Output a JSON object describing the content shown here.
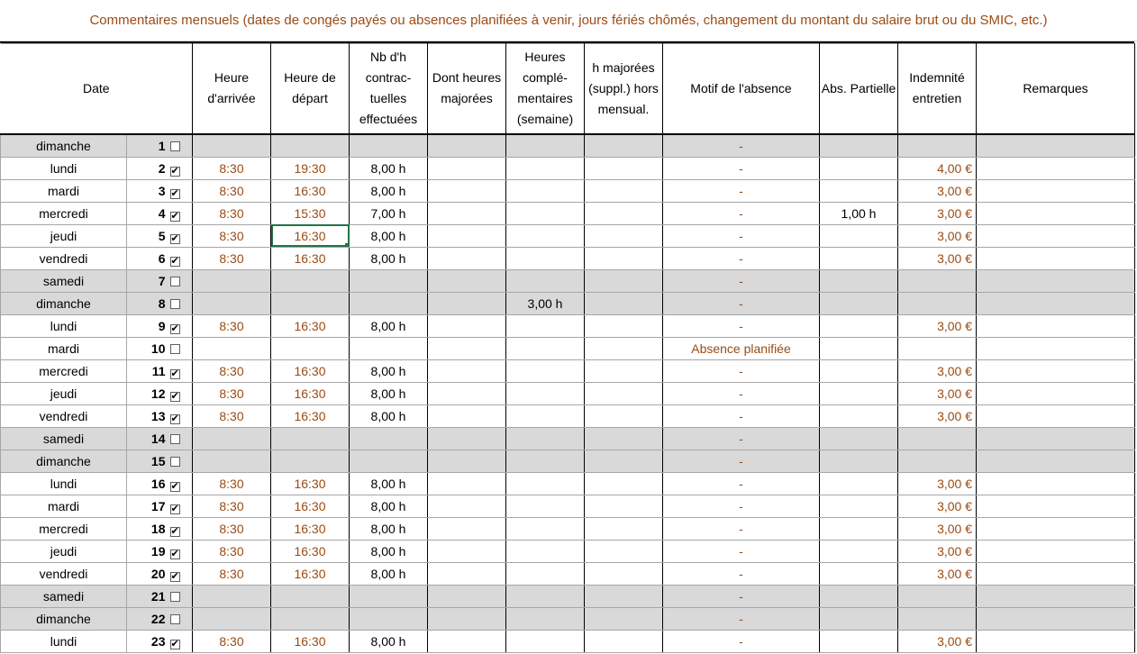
{
  "comment": "Commentaires mensuels (dates de congés payés ou absences planifiées à venir, jours fériés chômés, changement du montant du salaire brut ou du SMIC, etc.)",
  "headers": {
    "date": "Date",
    "arrivee": "Heure d'arrivée",
    "depart": "Heure de départ",
    "contractuelles": "Nb d'h contrac-tuelles effectuées",
    "majorees": "Dont heures majorées",
    "complementaires": "Heures complé-mentaires (semaine)",
    "hors": "h majorées (suppl.) hors mensual.",
    "motif": "Motif de l'absence",
    "partielle": "Abs. Partielle",
    "indemnite": "Indemnité entretien",
    "remarques": "Remarques"
  },
  "icons": {
    "checked": "checkbox-checked-icon",
    "unchecked": "checkbox-unchecked-icon"
  },
  "colors": {
    "accent_text": "#9b4b14",
    "weekend_fill": "#d9d9d9",
    "selection": "#217346"
  },
  "selected_cell": {
    "row": 5,
    "column": "depart"
  },
  "rows": [
    {
      "day": "dimanche",
      "num": "1",
      "checked": false,
      "weekend": true,
      "arrivee": "",
      "depart": "",
      "hours": "",
      "majorees": "",
      "complementaires": "",
      "hors": "",
      "motif": "-",
      "partielle": "",
      "indemnite": "",
      "remarques": ""
    },
    {
      "day": "lundi",
      "num": "2",
      "checked": true,
      "weekend": false,
      "arrivee": "8:30",
      "depart": "19:30",
      "hours": "8,00 h",
      "majorees": "",
      "complementaires": "",
      "hors": "",
      "motif": "-",
      "partielle": "",
      "indemnite": "4,00 €",
      "remarques": ""
    },
    {
      "day": "mardi",
      "num": "3",
      "checked": true,
      "weekend": false,
      "arrivee": "8:30",
      "depart": "16:30",
      "hours": "8,00 h",
      "majorees": "",
      "complementaires": "",
      "hors": "",
      "motif": "-",
      "partielle": "",
      "indemnite": "3,00 €",
      "remarques": ""
    },
    {
      "day": "mercredi",
      "num": "4",
      "checked": true,
      "weekend": false,
      "arrivee": "8:30",
      "depart": "15:30",
      "hours": "7,00 h",
      "majorees": "",
      "complementaires": "",
      "hors": "",
      "motif": "-",
      "partielle": "1,00 h",
      "indemnite": "3,00 €",
      "remarques": ""
    },
    {
      "day": "jeudi",
      "num": "5",
      "checked": true,
      "weekend": false,
      "arrivee": "8:30",
      "depart": "16:30",
      "hours": "8,00 h",
      "majorees": "",
      "complementaires": "",
      "hors": "",
      "motif": "-",
      "partielle": "",
      "indemnite": "3,00 €",
      "remarques": ""
    },
    {
      "day": "vendredi",
      "num": "6",
      "checked": true,
      "weekend": false,
      "arrivee": "8:30",
      "depart": "16:30",
      "hours": "8,00 h",
      "majorees": "",
      "complementaires": "",
      "hors": "",
      "motif": "-",
      "partielle": "",
      "indemnite": "3,00 €",
      "remarques": ""
    },
    {
      "day": "samedi",
      "num": "7",
      "checked": false,
      "weekend": true,
      "arrivee": "",
      "depart": "",
      "hours": "",
      "majorees": "",
      "complementaires": "",
      "hors": "",
      "motif": "-",
      "partielle": "",
      "indemnite": "",
      "remarques": ""
    },
    {
      "day": "dimanche",
      "num": "8",
      "checked": false,
      "weekend": true,
      "arrivee": "",
      "depart": "",
      "hours": "",
      "majorees": "",
      "complementaires": "3,00 h",
      "hors": "",
      "motif": "-",
      "partielle": "",
      "indemnite": "",
      "remarques": ""
    },
    {
      "day": "lundi",
      "num": "9",
      "checked": true,
      "weekend": false,
      "arrivee": "8:30",
      "depart": "16:30",
      "hours": "8,00 h",
      "majorees": "",
      "complementaires": "",
      "hors": "",
      "motif": "-",
      "partielle": "",
      "indemnite": "3,00 €",
      "remarques": ""
    },
    {
      "day": "mardi",
      "num": "10",
      "checked": false,
      "weekend": false,
      "arrivee": "",
      "depart": "",
      "hours": "",
      "majorees": "",
      "complementaires": "",
      "hors": "",
      "motif": "Absence planifiée",
      "partielle": "",
      "indemnite": "",
      "remarques": ""
    },
    {
      "day": "mercredi",
      "num": "11",
      "checked": true,
      "weekend": false,
      "arrivee": "8:30",
      "depart": "16:30",
      "hours": "8,00 h",
      "majorees": "",
      "complementaires": "",
      "hors": "",
      "motif": "-",
      "partielle": "",
      "indemnite": "3,00 €",
      "remarques": ""
    },
    {
      "day": "jeudi",
      "num": "12",
      "checked": true,
      "weekend": false,
      "arrivee": "8:30",
      "depart": "16:30",
      "hours": "8,00 h",
      "majorees": "",
      "complementaires": "",
      "hors": "",
      "motif": "-",
      "partielle": "",
      "indemnite": "3,00 €",
      "remarques": ""
    },
    {
      "day": "vendredi",
      "num": "13",
      "checked": true,
      "weekend": false,
      "arrivee": "8:30",
      "depart": "16:30",
      "hours": "8,00 h",
      "majorees": "",
      "complementaires": "",
      "hors": "",
      "motif": "-",
      "partielle": "",
      "indemnite": "3,00 €",
      "remarques": ""
    },
    {
      "day": "samedi",
      "num": "14",
      "checked": false,
      "weekend": true,
      "arrivee": "",
      "depart": "",
      "hours": "",
      "majorees": "",
      "complementaires": "",
      "hors": "",
      "motif": "-",
      "partielle": "",
      "indemnite": "",
      "remarques": ""
    },
    {
      "day": "dimanche",
      "num": "15",
      "checked": false,
      "weekend": true,
      "arrivee": "",
      "depart": "",
      "hours": "",
      "majorees": "",
      "complementaires": "",
      "hors": "",
      "motif": "-",
      "partielle": "",
      "indemnite": "",
      "remarques": ""
    },
    {
      "day": "lundi",
      "num": "16",
      "checked": true,
      "weekend": false,
      "arrivee": "8:30",
      "depart": "16:30",
      "hours": "8,00 h",
      "majorees": "",
      "complementaires": "",
      "hors": "",
      "motif": "-",
      "partielle": "",
      "indemnite": "3,00 €",
      "remarques": ""
    },
    {
      "day": "mardi",
      "num": "17",
      "checked": true,
      "weekend": false,
      "arrivee": "8:30",
      "depart": "16:30",
      "hours": "8,00 h",
      "majorees": "",
      "complementaires": "",
      "hors": "",
      "motif": "-",
      "partielle": "",
      "indemnite": "3,00 €",
      "remarques": ""
    },
    {
      "day": "mercredi",
      "num": "18",
      "checked": true,
      "weekend": false,
      "arrivee": "8:30",
      "depart": "16:30",
      "hours": "8,00 h",
      "majorees": "",
      "complementaires": "",
      "hors": "",
      "motif": "-",
      "partielle": "",
      "indemnite": "3,00 €",
      "remarques": ""
    },
    {
      "day": "jeudi",
      "num": "19",
      "checked": true,
      "weekend": false,
      "arrivee": "8:30",
      "depart": "16:30",
      "hours": "8,00 h",
      "majorees": "",
      "complementaires": "",
      "hors": "",
      "motif": "-",
      "partielle": "",
      "indemnite": "3,00 €",
      "remarques": ""
    },
    {
      "day": "vendredi",
      "num": "20",
      "checked": true,
      "weekend": false,
      "arrivee": "8:30",
      "depart": "16:30",
      "hours": "8,00 h",
      "majorees": "",
      "complementaires": "",
      "hors": "",
      "motif": "-",
      "partielle": "",
      "indemnite": "3,00 €",
      "remarques": ""
    },
    {
      "day": "samedi",
      "num": "21",
      "checked": false,
      "weekend": true,
      "arrivee": "",
      "depart": "",
      "hours": "",
      "majorees": "",
      "complementaires": "",
      "hors": "",
      "motif": "-",
      "partielle": "",
      "indemnite": "",
      "remarques": ""
    },
    {
      "day": "dimanche",
      "num": "22",
      "checked": false,
      "weekend": true,
      "arrivee": "",
      "depart": "",
      "hours": "",
      "majorees": "",
      "complementaires": "",
      "hors": "",
      "motif": "-",
      "partielle": "",
      "indemnite": "",
      "remarques": ""
    },
    {
      "day": "lundi",
      "num": "23",
      "checked": true,
      "weekend": false,
      "arrivee": "8:30",
      "depart": "16:30",
      "hours": "8,00 h",
      "majorees": "",
      "complementaires": "",
      "hors": "",
      "motif": "-",
      "partielle": "",
      "indemnite": "3,00 €",
      "remarques": ""
    }
  ]
}
